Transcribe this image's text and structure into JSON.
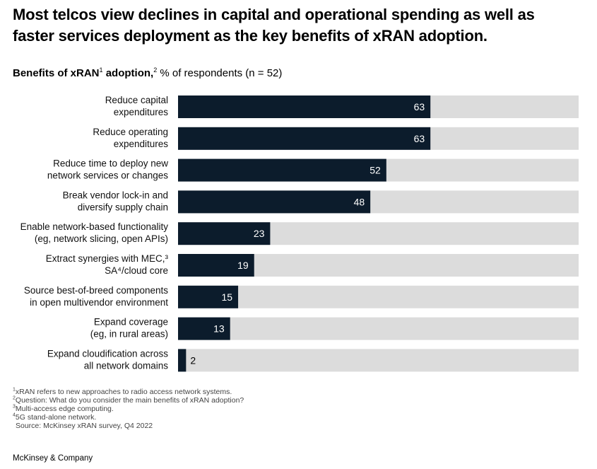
{
  "header": {
    "title": "Most telcos view declines in capital and operational spending as well as faster services deployment as the key benefits of xRAN adoption.",
    "subtitle_bold": "Benefits of xRAN",
    "subtitle_sup1": "1",
    "subtitle_bold2": " adoption,",
    "subtitle_sup2": "2",
    "subtitle_rest": " % of respondents (n = 52)"
  },
  "footnotes": {
    "n1_mark": "1",
    "n1_text": "xRAN refers to new approaches to radio access network systems.",
    "n2_mark": "2",
    "n2_text": "Question: What do you consider the main benefits of xRAN adoption?",
    "n3_mark": "3",
    "n3_text": "Multi-access edge computing.",
    "n4_mark": "4",
    "n4_text": "5G stand-alone network.",
    "source": "Source: McKinsey xRAN survey, Q4 2022"
  },
  "brand": "McKinsey & Company",
  "chart_data": {
    "type": "bar",
    "orientation": "horizontal",
    "xlim": [
      0,
      100
    ],
    "categories": [
      [
        "Reduce capital",
        "expenditures"
      ],
      [
        "Reduce operating",
        "expenditures"
      ],
      [
        "Reduce time to deploy new",
        "network services or changes"
      ],
      [
        "Break vendor lock-in and",
        "diversify supply chain"
      ],
      [
        "Enable network-based functionality",
        "(eg, network slicing, open APIs)"
      ],
      [
        "Extract synergies with MEC,³",
        "SA⁴/cloud core"
      ],
      [
        "Source best-of-breed components",
        "in open multivendor environment"
      ],
      [
        "Expand coverage",
        "(eg, in rural areas)"
      ],
      [
        "Expand cloudification across",
        "all network domains"
      ]
    ],
    "values": [
      63,
      63,
      52,
      48,
      23,
      19,
      15,
      13,
      2
    ],
    "colors": {
      "bar": "#0c1c2c",
      "track": "#dcdcdc",
      "label_inside": "#ffffff",
      "label_outside": "#000000"
    }
  }
}
